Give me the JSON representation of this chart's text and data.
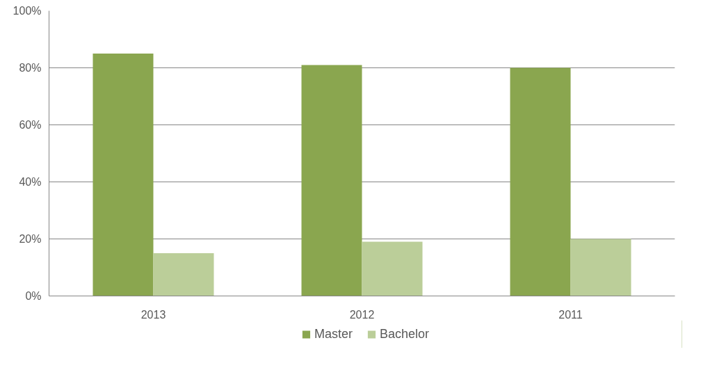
{
  "chart_data": {
    "type": "bar",
    "categories": [
      "2013",
      "2012",
      "2011"
    ],
    "series": [
      {
        "name": "Master",
        "color": "#8aa64f",
        "values": [
          85,
          81,
          80
        ]
      },
      {
        "name": "Bachelor",
        "color": "#bbce99",
        "values": [
          15,
          19,
          20
        ]
      }
    ],
    "ylim": [
      0,
      100
    ],
    "yticks": [
      {
        "value": 0,
        "label": "0%"
      },
      {
        "value": 20,
        "label": "20%"
      },
      {
        "value": 40,
        "label": "40%"
      },
      {
        "value": 60,
        "label": "60%"
      },
      {
        "value": 80,
        "label": "80%"
      },
      {
        "value": 100,
        "label": "100%"
      }
    ],
    "grid": "y",
    "legend": "bottom"
  }
}
